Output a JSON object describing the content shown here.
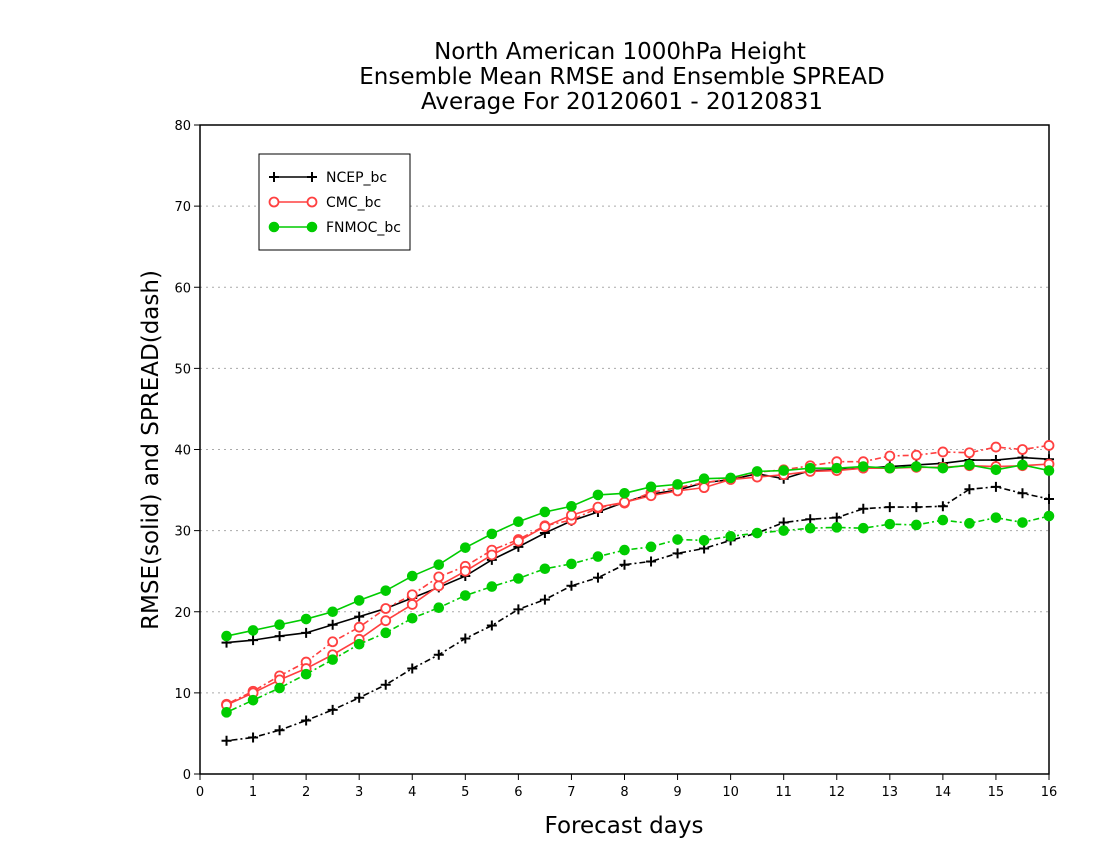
{
  "chart_data": {
    "type": "line",
    "title_lines": [
      "North American 1000hPa Height",
      "Ensemble Mean RMSE and Ensemble SPREAD",
      "Average For 20120601 - 20120831"
    ],
    "xlabel": "Forecast days",
    "ylabel": "RMSE(solid) and SPREAD(dash)",
    "xlim": [
      0,
      16
    ],
    "ylim": [
      0,
      80
    ],
    "xticks": [
      0,
      1,
      2,
      3,
      4,
      5,
      6,
      7,
      8,
      9,
      10,
      11,
      12,
      13,
      14,
      15,
      16
    ],
    "yticks": [
      0,
      10,
      20,
      30,
      40,
      50,
      60,
      70,
      80
    ],
    "grid": "horizontal dotted",
    "legend_position": "top-left",
    "x": [
      0.5,
      1,
      1.5,
      2,
      2.5,
      3,
      3.5,
      4,
      4.5,
      5,
      5.5,
      6,
      6.5,
      7,
      7.5,
      8,
      8.5,
      9,
      9.5,
      10,
      10.5,
      11,
      11.5,
      12,
      12.5,
      13,
      13.5,
      14,
      14.5,
      15,
      15.5,
      16
    ],
    "series": [
      {
        "name": "NCEP_bc",
        "color": "#000000",
        "marker": "plus",
        "rmse": [
          16.2,
          16.5,
          17.0,
          17.4,
          18.4,
          19.4,
          20.4,
          21.7,
          23.0,
          24.4,
          26.4,
          28.0,
          29.7,
          31.2,
          32.3,
          33.5,
          34.5,
          35.0,
          35.9,
          36.3,
          37.0,
          36.4,
          37.4,
          37.5,
          37.7,
          37.9,
          38.1,
          38.3,
          38.7,
          38.7,
          39.0,
          38.8
        ],
        "spread": [
          4.1,
          4.5,
          5.4,
          6.6,
          7.9,
          9.4,
          11.0,
          13.0,
          14.7,
          16.7,
          18.3,
          20.3,
          21.5,
          23.2,
          24.2,
          25.8,
          26.2,
          27.2,
          27.8,
          28.8,
          29.7,
          31.0,
          31.4,
          31.6,
          32.7,
          32.9,
          32.9,
          33.0,
          35.1,
          35.4,
          34.6,
          33.9
        ]
      },
      {
        "name": "CMC_bc",
        "color": "#ff4040",
        "marker": "open-circle",
        "rmse": [
          8.5,
          10.0,
          11.6,
          13.0,
          14.7,
          16.6,
          18.9,
          20.9,
          23.2,
          25.0,
          27.0,
          28.7,
          30.5,
          31.9,
          32.9,
          33.5,
          34.3,
          34.9,
          35.3,
          36.3,
          36.6,
          36.9,
          37.3,
          37.4,
          37.7,
          37.7,
          37.8,
          37.8,
          38.0,
          37.9,
          38.0,
          38.2
        ],
        "spread": [
          8.6,
          10.2,
          12.1,
          13.8,
          16.3,
          18.1,
          20.4,
          22.1,
          24.3,
          25.6,
          27.6,
          28.9,
          30.6,
          31.3,
          32.8,
          33.4,
          34.7,
          35.3,
          35.9,
          36.4,
          37.2,
          37.5,
          38.0,
          38.5,
          38.5,
          39.2,
          39.3,
          39.7,
          39.6,
          40.3,
          40.0,
          40.5
        ]
      },
      {
        "name": "FNMOC_bc",
        "color": "#00cc00",
        "marker": "filled-circle",
        "rmse": [
          17.0,
          17.7,
          18.4,
          19.1,
          20.0,
          21.4,
          22.6,
          24.4,
          25.8,
          27.9,
          29.6,
          31.1,
          32.3,
          33.0,
          34.4,
          34.6,
          35.4,
          35.7,
          36.4,
          36.5,
          37.3,
          37.4,
          37.7,
          37.7,
          37.9,
          37.7,
          37.9,
          37.7,
          38.1,
          37.5,
          38.1,
          37.4
        ],
        "spread": [
          7.6,
          9.1,
          10.6,
          12.3,
          14.1,
          16.0,
          17.4,
          19.2,
          20.5,
          22.0,
          23.1,
          24.1,
          25.3,
          25.9,
          26.8,
          27.6,
          28.0,
          28.9,
          28.8,
          29.3,
          29.7,
          30.0,
          30.3,
          30.4,
          30.3,
          30.8,
          30.7,
          31.3,
          30.9,
          31.6,
          31.0,
          31.8
        ]
      }
    ]
  }
}
